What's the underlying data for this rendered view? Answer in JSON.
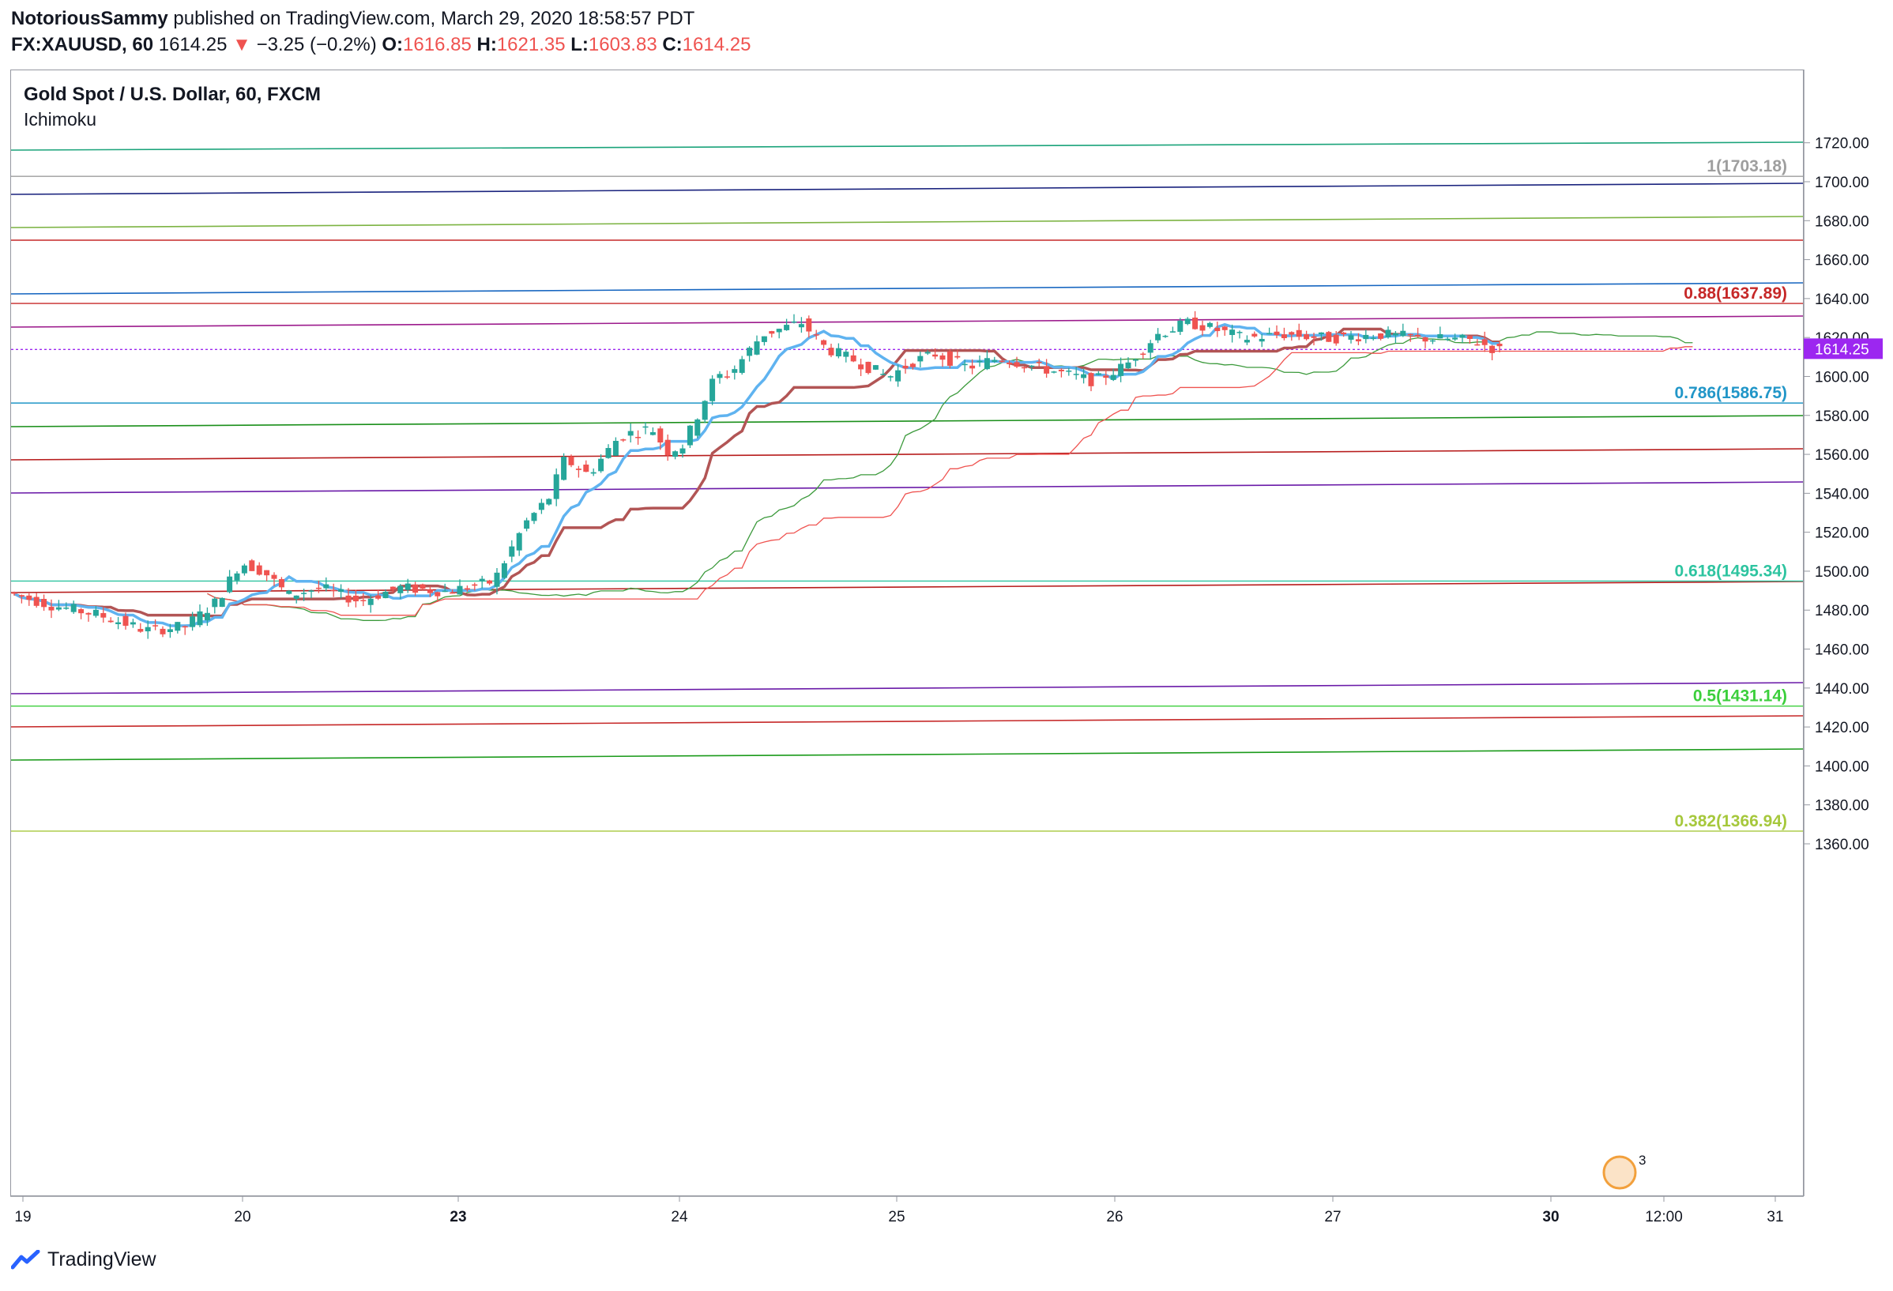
{
  "header": {
    "author": "NotoriousSammy",
    "published_text": "published on TradingView.com, March 29, 2020 18:58:57 PDT",
    "symbol": "FX:XAUUSD, 60",
    "last": "1614.25",
    "change_arrow": "▼",
    "change": "−3.25 (−0.2%)",
    "o_label": "O:",
    "o": "1616.85",
    "h_label": "H:",
    "h": "1621.35",
    "l_label": "L:",
    "l": "1603.83",
    "c_label": "C:",
    "c": "1614.25"
  },
  "chart": {
    "title": "Gold Spot / U.S. Dollar, 60, FXCM",
    "indicator": "Ichimoku",
    "price_badge": "1614.25",
    "price_badge_color": "#9c27f0"
  },
  "y_axis": {
    "ticks": [
      "1720.00",
      "1700.00",
      "1680.00",
      "1660.00",
      "1640.00",
      "1620.00",
      "1600.00",
      "1580.00",
      "1560.00",
      "1540.00",
      "1520.00",
      "1500.00",
      "1480.00",
      "1460.00",
      "1440.00",
      "1420.00",
      "1400.00",
      "1380.00",
      "1360.00"
    ]
  },
  "x_axis": {
    "ticks": [
      {
        "label": "19",
        "bold": false
      },
      {
        "label": "20",
        "bold": false
      },
      {
        "label": "23",
        "bold": true
      },
      {
        "label": "24",
        "bold": false
      },
      {
        "label": "25",
        "bold": false
      },
      {
        "label": "26",
        "bold": false
      },
      {
        "label": "27",
        "bold": false
      },
      {
        "label": "30",
        "bold": true
      },
      {
        "label": "12:00",
        "bold": false
      },
      {
        "label": "31",
        "bold": false
      }
    ]
  },
  "fib_levels": [
    {
      "label": "1(1703.18)",
      "color": "#9e9e9e",
      "price": 1703.18
    },
    {
      "label": "0.88(1637.89)",
      "color": "#c62828",
      "price": 1637.89
    },
    {
      "label": "0.786(1586.75)",
      "color": "#2196c8",
      "price": 1586.75
    },
    {
      "label": "0.618(1495.34)",
      "color": "#2ec4a0",
      "price": 1495.34
    },
    {
      "label": "0.5(1431.14)",
      "color": "#3ccf3c",
      "price": 1431.14
    },
    {
      "label": "0.382(1366.94)",
      "color": "#a6c83c",
      "price": 1366.94
    }
  ],
  "colors": {
    "up": "#26a69a",
    "down": "#ef5350",
    "tenkan": "#5fb3f0",
    "kijun": "#b25555",
    "span_a": "#3c9a3c",
    "span_b": "#ef5350"
  },
  "brand": {
    "name": "TradingView"
  }
}
